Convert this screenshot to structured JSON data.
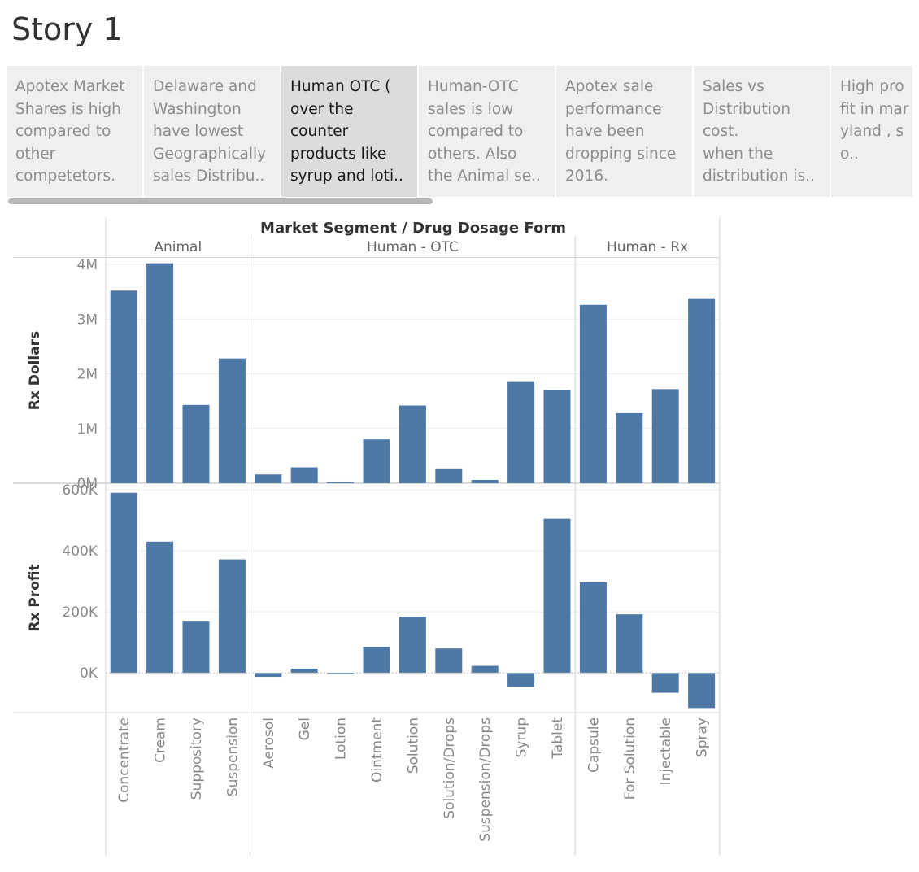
{
  "story": {
    "title": "Story 1",
    "points": [
      {
        "caption": "Apotex Market\nShares is high\ncompared to\nother\ncompetetors.",
        "active": false
      },
      {
        "caption": "Delaware and\nWashington\nhave lowest\nGeographically\nsales Distribu..",
        "active": false
      },
      {
        "caption": "Human OTC (\nover the\ncounter\nproducts like\nsyrup and loti..",
        "active": true
      },
      {
        "caption": "Human-OTC\nsales is low\ncompared to\nothers.    Also\nthe Animal se..",
        "active": false
      },
      {
        "caption": "Apotex sale\nperformance\nhave been\ndropping since\n2016.",
        "active": false
      },
      {
        "caption": "Sales vs\nDistribution\ncost.\nwhen the\ndistribution is..",
        "active": false
      },
      {
        "caption": "High pro\nfit in mar\nyland , s\no..",
        "active": false
      }
    ]
  },
  "colors": {
    "bar": "#4e79a7",
    "gridline": "#ececec",
    "divider": "#d4d4d4",
    "axis_text": "#888888",
    "header_text": "#666666",
    "title_text": "#333333",
    "active_point_bg": "#dcdcdc",
    "inactive_point_bg": "#efefef"
  },
  "chart_data": {
    "type": "bar",
    "column_header": "Market Segment  /  Drug Dosage Form",
    "segments": [
      {
        "name": "Animal",
        "categories": [
          "Concentrate",
          "Cream",
          "Suppository",
          "Suspension"
        ]
      },
      {
        "name": "Human - OTC",
        "categories": [
          "Aerosol",
          "Gel",
          "Lotion",
          "Ointment",
          "Solution",
          "Solution/Drops",
          "Suspension/Drops",
          "Syrup",
          "Tablet"
        ]
      },
      {
        "name": "Human - Rx",
        "categories": [
          "Capsule",
          "For Solution",
          "Injectable",
          "Spray"
        ]
      }
    ],
    "series": [
      {
        "name": "Rx Dollars",
        "ylim": [
          0,
          4000000
        ],
        "ticks": [
          0,
          1000000,
          2000000,
          3000000,
          4000000
        ],
        "tick_labels": [
          "0M",
          "1M",
          "2M",
          "3M",
          "4M"
        ],
        "values": [
          3520000,
          4020000,
          1430000,
          2280000,
          160000,
          290000,
          30000,
          800000,
          1420000,
          270000,
          60000,
          1850000,
          1700000,
          3260000,
          1280000,
          1720000,
          3380000
        ]
      },
      {
        "name": "Rx Profit",
        "ylim": [
          -130000,
          600000
        ],
        "ticks": [
          0,
          200000,
          400000,
          600000
        ],
        "tick_labels": [
          "0K",
          "200K",
          "400K",
          "600K"
        ],
        "values": [
          590000,
          430000,
          168000,
          372000,
          -13000,
          14000,
          -4000,
          85000,
          184000,
          80000,
          23000,
          -45000,
          505000,
          297000,
          192000,
          -65000,
          -115000
        ]
      }
    ]
  }
}
